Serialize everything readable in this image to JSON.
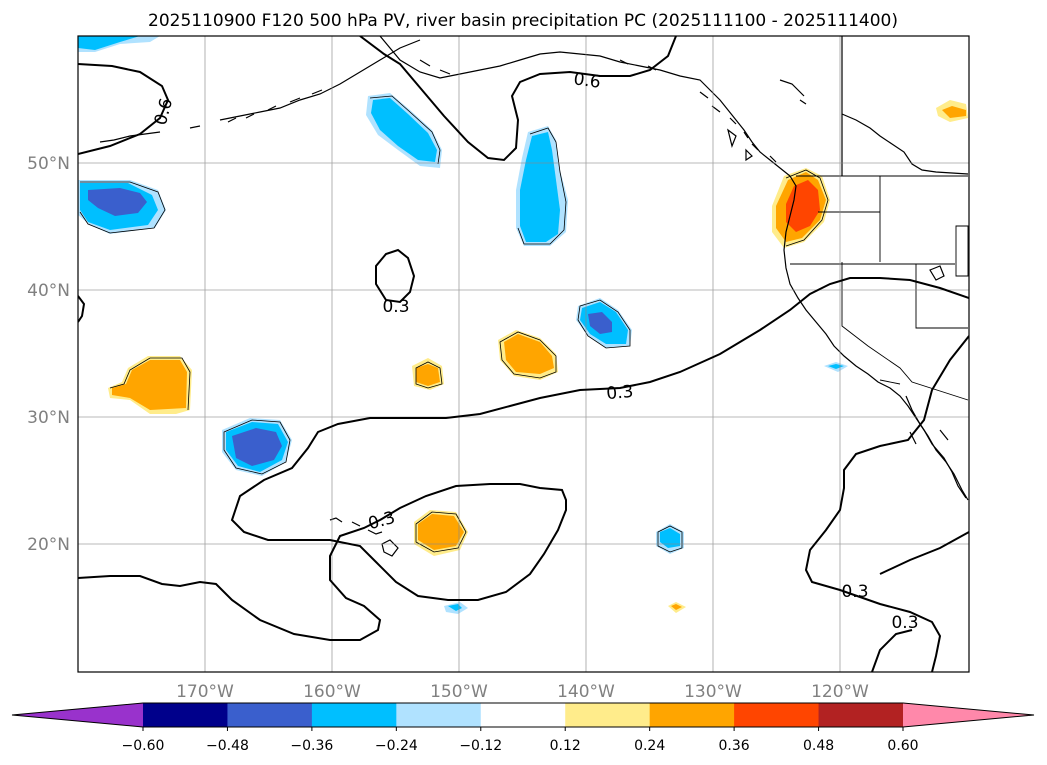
{
  "title": "2025110900 F120 500 hPa PV, river basin precipitation PC (2025111100 - 2025111400)",
  "latitude_labels": [
    "50°N",
    "40°N",
    "30°N",
    "20°N"
  ],
  "longitude_labels": [
    "170°W",
    "160°W",
    "150°W",
    "140°W",
    "130°W",
    "120°W"
  ],
  "contour_labels": [
    "0.6",
    "0.6",
    "0.3",
    "0.3",
    "0.3",
    "0.3",
    "0.3"
  ],
  "colorbar": {
    "tick_labels": [
      "−0.60",
      "−0.48",
      "−0.36",
      "−0.24",
      "−0.12",
      "0.12",
      "0.24",
      "0.36",
      "0.48",
      "0.60"
    ],
    "colors": [
      "#9932cc",
      "#00008b",
      "#3a5fcd",
      "#00bfff",
      "#b0e2ff",
      "#ffffff",
      "#ffec8b",
      "#ffa500",
      "#ff4500",
      "#b22222",
      "#ff88aa"
    ]
  },
  "fill_colors": {
    "light_blue": "#b0e2ff",
    "deep_sky_blue": "#00bfff",
    "royal_blue": "#3a5fcd",
    "light_yellow": "#ffec8b",
    "orange": "#ffa500",
    "orange_red": "#ff4500"
  }
}
